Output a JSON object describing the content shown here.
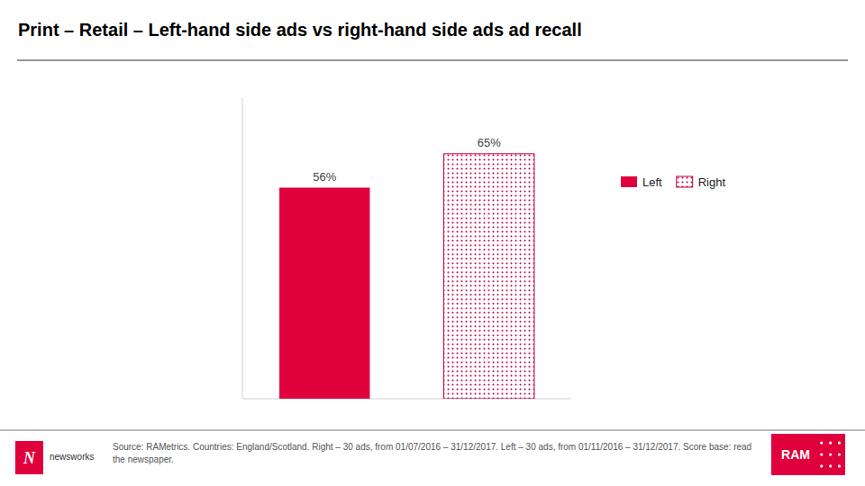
{
  "chart_data": {
    "type": "bar",
    "title": "Print – Retail – Left-hand side ads vs right-hand side ads ad recall",
    "categories": [
      "Left",
      "Right"
    ],
    "values": [
      56,
      65
    ],
    "value_labels": [
      "56%",
      "65%"
    ],
    "data_labels": true,
    "colors": [
      "#E0003C",
      "#C0003C"
    ],
    "ylim": [
      0,
      80
    ],
    "tick_labels": false,
    "grid": false,
    "legend": "right",
    "annotations": [
      "Source: RAMetrics. Countries: England/Scotland. Right – 30 ads, from 01/07/2016 – 31/12/2017. Left – 30 ads, from 01/11/2016 – 31/12/2017. Score base: read the newspaper.",
      "N",
      "newsworks",
      "RAM"
    ]
  }
}
